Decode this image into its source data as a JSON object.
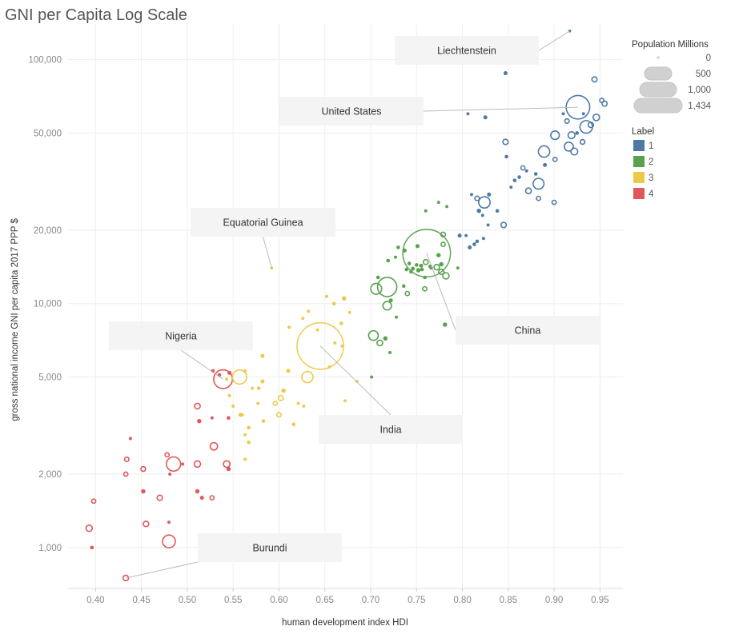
{
  "title": "GNI per Capita Log Scale",
  "chart_data": {
    "type": "scatter",
    "title": "GNI per Capita Log Scale",
    "xlabel": "human development index HDI",
    "ylabel": "gross national income GNI per capita 2017 PPP $",
    "x_scale": "linear",
    "y_scale": "log",
    "xlim": [
      0.37,
      0.975
    ],
    "ylim": [
      680,
      140000
    ],
    "x_ticks": [
      0.4,
      0.45,
      0.5,
      0.55,
      0.6,
      0.65,
      0.7,
      0.75,
      0.8,
      0.85,
      0.9,
      0.95
    ],
    "x_tick_labels": [
      "0.40",
      "0.45",
      "0.50",
      "0.55",
      "0.60",
      "0.65",
      "0.70",
      "0.75",
      "0.80",
      "0.85",
      "0.90",
      "0.95"
    ],
    "y_ticks": [
      1000,
      2000,
      5000,
      10000,
      20000,
      50000,
      100000
    ],
    "y_tick_labels": [
      "1,000",
      "2,000",
      "5,000",
      "10,000",
      "20,000",
      "50,000",
      "100,000"
    ],
    "grid": true,
    "legend": {
      "size_title": "Population Millions",
      "size_entries": [
        {
          "label": "0",
          "value": 0
        },
        {
          "label": "500",
          "value": 500
        },
        {
          "label": "1,000",
          "value": 1000
        },
        {
          "label": "1,434",
          "value": 1434
        }
      ],
      "color_title": "Label",
      "color_entries": [
        {
          "label": "1",
          "color": "#4e79a7"
        },
        {
          "label": "2",
          "color": "#59a14f"
        },
        {
          "label": "3",
          "color": "#edc948"
        },
        {
          "label": "4",
          "color": "#e15759"
        }
      ],
      "position": "right"
    },
    "annotations": [
      {
        "text": "Liechtenstein",
        "x": 0.917,
        "y": 131000
      },
      {
        "text": "United States",
        "x": 0.926,
        "y": 63800
      },
      {
        "text": "Equatorial Guinea",
        "x": 0.592,
        "y": 14000
      },
      {
        "text": "China",
        "x": 0.761,
        "y": 16100
      },
      {
        "text": "Nigeria",
        "x": 0.539,
        "y": 4900
      },
      {
        "text": "India",
        "x": 0.645,
        "y": 6700
      },
      {
        "text": "Burundi",
        "x": 0.433,
        "y": 750
      }
    ],
    "series": [
      {
        "name": "1",
        "color": "#4e79a7",
        "points": [
          {
            "x": 0.917,
            "y": 131000,
            "pop": 0.04
          },
          {
            "x": 0.926,
            "y": 63800,
            "pop": 329
          },
          {
            "x": 0.847,
            "y": 88000,
            "pop": 3
          },
          {
            "x": 0.952,
            "y": 68000,
            "pop": 5
          },
          {
            "x": 0.955,
            "y": 66000,
            "pop": 9
          },
          {
            "x": 0.944,
            "y": 83000,
            "pop": 9
          },
          {
            "x": 0.946,
            "y": 58000,
            "pop": 17
          },
          {
            "x": 0.94,
            "y": 54000,
            "pop": 10
          },
          {
            "x": 0.935,
            "y": 53000,
            "pop": 83
          },
          {
            "x": 0.931,
            "y": 46000,
            "pop": 7
          },
          {
            "x": 0.916,
            "y": 44000,
            "pop": 38
          },
          {
            "x": 0.919,
            "y": 49000,
            "pop": 20
          },
          {
            "x": 0.901,
            "y": 49000,
            "pop": 34
          },
          {
            "x": 0.922,
            "y": 42000,
            "pop": 20
          },
          {
            "x": 0.901,
            "y": 39000,
            "pop": 5
          },
          {
            "x": 0.889,
            "y": 42000,
            "pop": 66
          },
          {
            "x": 0.89,
            "y": 37000,
            "pop": 3
          },
          {
            "x": 0.91,
            "y": 60000,
            "pop": 1
          },
          {
            "x": 0.914,
            "y": 56000,
            "pop": 6
          },
          {
            "x": 0.932,
            "y": 60000,
            "pop": 1
          },
          {
            "x": 0.925,
            "y": 50000,
            "pop": 2
          },
          {
            "x": 0.9,
            "y": 26000,
            "pop": 5
          },
          {
            "x": 0.883,
            "y": 31000,
            "pop": 60
          },
          {
            "x": 0.88,
            "y": 34000,
            "pop": 2
          },
          {
            "x": 0.87,
            "y": 35000,
            "pop": 1
          },
          {
            "x": 0.866,
            "y": 36000,
            "pop": 5
          },
          {
            "x": 0.862,
            "y": 33000,
            "pop": 2
          },
          {
            "x": 0.857,
            "y": 32000,
            "pop": 2
          },
          {
            "x": 0.853,
            "y": 30000,
            "pop": 1
          },
          {
            "x": 0.847,
            "y": 46000,
            "pop": 10
          },
          {
            "x": 0.848,
            "y": 40000,
            "pop": 2
          },
          {
            "x": 0.872,
            "y": 29000,
            "pop": 12
          },
          {
            "x": 0.883,
            "y": 27000,
            "pop": 5
          },
          {
            "x": 0.824,
            "y": 26000,
            "pop": 66
          },
          {
            "x": 0.816,
            "y": 27000,
            "pop": 6
          },
          {
            "x": 0.829,
            "y": 28000,
            "pop": 3
          },
          {
            "x": 0.818,
            "y": 24000,
            "pop": 4
          },
          {
            "x": 0.838,
            "y": 24000,
            "pop": 2
          },
          {
            "x": 0.825,
            "y": 58000,
            "pop": 3
          },
          {
            "x": 0.806,
            "y": 60000,
            "pop": 1
          },
          {
            "x": 0.81,
            "y": 28000,
            "pop": 1
          },
          {
            "x": 0.822,
            "y": 23000,
            "pop": 1
          },
          {
            "x": 0.828,
            "y": 21000,
            "pop": 1
          },
          {
            "x": 0.845,
            "y": 21000,
            "pop": 10
          },
          {
            "x": 0.804,
            "y": 19000,
            "pop": 1
          },
          {
            "x": 0.816,
            "y": 18000,
            "pop": 2
          },
          {
            "x": 0.823,
            "y": 18500,
            "pop": 1
          },
          {
            "x": 0.813,
            "y": 17500,
            "pop": 2
          },
          {
            "x": 0.808,
            "y": 17000,
            "pop": 3
          },
          {
            "x": 0.797,
            "y": 19000,
            "pop": 3
          }
        ]
      },
      {
        "name": "2",
        "color": "#59a14f",
        "points": [
          {
            "x": 0.761,
            "y": 16100,
            "pop": 1434
          },
          {
            "x": 0.779,
            "y": 19200,
            "pop": 7
          },
          {
            "x": 0.779,
            "y": 17500,
            "pop": 5
          },
          {
            "x": 0.777,
            "y": 14500,
            "pop": 4
          },
          {
            "x": 0.782,
            "y": 13000,
            "pop": 16
          },
          {
            "x": 0.777,
            "y": 13500,
            "pop": 10
          },
          {
            "x": 0.774,
            "y": 15800,
            "pop": 4
          },
          {
            "x": 0.772,
            "y": 14100,
            "pop": 11
          },
          {
            "x": 0.765,
            "y": 14200,
            "pop": 3
          },
          {
            "x": 0.76,
            "y": 14800,
            "pop": 8
          },
          {
            "x": 0.766,
            "y": 14000,
            "pop": 2
          },
          {
            "x": 0.755,
            "y": 14300,
            "pop": 3
          },
          {
            "x": 0.756,
            "y": 13800,
            "pop": 2
          },
          {
            "x": 0.75,
            "y": 14400,
            "pop": 2
          },
          {
            "x": 0.752,
            "y": 13700,
            "pop": 4
          },
          {
            "x": 0.746,
            "y": 13900,
            "pop": 3
          },
          {
            "x": 0.742,
            "y": 14600,
            "pop": 2
          },
          {
            "x": 0.739,
            "y": 13800,
            "pop": 2
          },
          {
            "x": 0.737,
            "y": 16500,
            "pop": 3
          },
          {
            "x": 0.751,
            "y": 17200,
            "pop": 3
          },
          {
            "x": 0.744,
            "y": 13500,
            "pop": 2
          },
          {
            "x": 0.759,
            "y": 12800,
            "pop": 2
          },
          {
            "x": 0.795,
            "y": 14000,
            "pop": 1
          },
          {
            "x": 0.781,
            "y": 8200,
            "pop": 4
          },
          {
            "x": 0.759,
            "y": 11500,
            "pop": 5
          },
          {
            "x": 0.74,
            "y": 11000,
            "pop": 5
          },
          {
            "x": 0.736,
            "y": 11800,
            "pop": 2
          },
          {
            "x": 0.708,
            "y": 12800,
            "pop": 2
          },
          {
            "x": 0.718,
            "y": 11700,
            "pop": 212
          },
          {
            "x": 0.706,
            "y": 11500,
            "pop": 60
          },
          {
            "x": 0.722,
            "y": 10300,
            "pop": 3
          },
          {
            "x": 0.718,
            "y": 9800,
            "pop": 34
          },
          {
            "x": 0.728,
            "y": 8800,
            "pop": 1
          },
          {
            "x": 0.703,
            "y": 7400,
            "pop": 45
          },
          {
            "x": 0.716,
            "y": 7200,
            "pop": 4
          },
          {
            "x": 0.71,
            "y": 6900,
            "pop": 12
          },
          {
            "x": 0.701,
            "y": 5000,
            "pop": 1
          },
          {
            "x": 0.721,
            "y": 6300,
            "pop": 1
          },
          {
            "x": 0.73,
            "y": 17000,
            "pop": 2
          },
          {
            "x": 0.719,
            "y": 15000,
            "pop": 2
          },
          {
            "x": 0.727,
            "y": 15500,
            "pop": 1
          },
          {
            "x": 0.76,
            "y": 24000,
            "pop": 1
          },
          {
            "x": 0.774,
            "y": 26000,
            "pop": 1
          },
          {
            "x": 0.783,
            "y": 25000,
            "pop": 1
          }
        ]
      },
      {
        "name": "3",
        "color": "#edc948",
        "points": [
          {
            "x": 0.645,
            "y": 6700,
            "pop": 1366
          },
          {
            "x": 0.557,
            "y": 5000,
            "pop": 109
          },
          {
            "x": 0.631,
            "y": 5000,
            "pop": 63
          },
          {
            "x": 0.616,
            "y": 3200,
            "pop": 2
          },
          {
            "x": 0.61,
            "y": 5300,
            "pop": 3
          },
          {
            "x": 0.605,
            "y": 4400,
            "pop": 4
          },
          {
            "x": 0.602,
            "y": 4100,
            "pop": 8
          },
          {
            "x": 0.6,
            "y": 3500,
            "pop": 6
          },
          {
            "x": 0.582,
            "y": 4800,
            "pop": 3
          },
          {
            "x": 0.578,
            "y": 4500,
            "pop": 2
          },
          {
            "x": 0.577,
            "y": 3900,
            "pop": 1
          },
          {
            "x": 0.571,
            "y": 4500,
            "pop": 1
          },
          {
            "x": 0.596,
            "y": 3900,
            "pop": 5
          },
          {
            "x": 0.583,
            "y": 3300,
            "pop": 2
          },
          {
            "x": 0.567,
            "y": 3100,
            "pop": 2
          },
          {
            "x": 0.563,
            "y": 2900,
            "pop": 1
          },
          {
            "x": 0.567,
            "y": 2700,
            "pop": 2
          },
          {
            "x": 0.563,
            "y": 2300,
            "pop": 1
          },
          {
            "x": 0.558,
            "y": 3500,
            "pop": 3
          },
          {
            "x": 0.56,
            "y": 3500,
            "pop": 1
          },
          {
            "x": 0.546,
            "y": 4200,
            "pop": 1
          },
          {
            "x": 0.55,
            "y": 3800,
            "pop": 1
          },
          {
            "x": 0.543,
            "y": 4900,
            "pop": 1
          },
          {
            "x": 0.563,
            "y": 5300,
            "pop": 1
          },
          {
            "x": 0.582,
            "y": 6100,
            "pop": 3
          },
          {
            "x": 0.668,
            "y": 8300,
            "pop": 2
          },
          {
            "x": 0.669,
            "y": 6700,
            "pop": 1
          },
          {
            "x": 0.661,
            "y": 6900,
            "pop": 1
          },
          {
            "x": 0.655,
            "y": 5500,
            "pop": 1
          },
          {
            "x": 0.672,
            "y": 4000,
            "pop": 1
          },
          {
            "x": 0.685,
            "y": 4800,
            "pop": 1
          },
          {
            "x": 0.671,
            "y": 10500,
            "pop": 4
          },
          {
            "x": 0.66,
            "y": 10000,
            "pop": 2
          },
          {
            "x": 0.642,
            "y": 7800,
            "pop": 1
          },
          {
            "x": 0.632,
            "y": 9300,
            "pop": 1
          },
          {
            "x": 0.626,
            "y": 8700,
            "pop": 1
          },
          {
            "x": 0.611,
            "y": 8000,
            "pop": 1
          },
          {
            "x": 0.677,
            "y": 9200,
            "pop": 1
          },
          {
            "x": 0.652,
            "y": 10700,
            "pop": 1
          },
          {
            "x": 0.621,
            "y": 3900,
            "pop": 1
          },
          {
            "x": 0.627,
            "y": 3800,
            "pop": 1
          },
          {
            "x": 0.592,
            "y": 14000,
            "pop": 1
          }
        ]
      },
      {
        "name": "4",
        "color": "#e15759",
        "points": [
          {
            "x": 0.539,
            "y": 4900,
            "pop": 201
          },
          {
            "x": 0.528,
            "y": 5300,
            "pop": 2
          },
          {
            "x": 0.535,
            "y": 5100,
            "pop": 2
          },
          {
            "x": 0.546,
            "y": 5200,
            "pop": 3
          },
          {
            "x": 0.511,
            "y": 3800,
            "pop": 12
          },
          {
            "x": 0.513,
            "y": 3300,
            "pop": 4
          },
          {
            "x": 0.527,
            "y": 3400,
            "pop": 1
          },
          {
            "x": 0.545,
            "y": 3400,
            "pop": 2
          },
          {
            "x": 0.529,
            "y": 2600,
            "pop": 24
          },
          {
            "x": 0.511,
            "y": 2200,
            "pop": 16
          },
          {
            "x": 0.543,
            "y": 2200,
            "pop": 18
          },
          {
            "x": 0.545,
            "y": 2100,
            "pop": 4
          },
          {
            "x": 0.485,
            "y": 2200,
            "pop": 110
          },
          {
            "x": 0.478,
            "y": 2400,
            "pop": 5
          },
          {
            "x": 0.495,
            "y": 2200,
            "pop": 1
          },
          {
            "x": 0.481,
            "y": 2000,
            "pop": 1
          },
          {
            "x": 0.452,
            "y": 2100,
            "pop": 7
          },
          {
            "x": 0.434,
            "y": 2300,
            "pop": 6
          },
          {
            "x": 0.433,
            "y": 2000,
            "pop": 5
          },
          {
            "x": 0.438,
            "y": 2800,
            "pop": 1
          },
          {
            "x": 0.452,
            "y": 1700,
            "pop": 4
          },
          {
            "x": 0.47,
            "y": 1600,
            "pop": 10
          },
          {
            "x": 0.398,
            "y": 1550,
            "pop": 5
          },
          {
            "x": 0.511,
            "y": 1700,
            "pop": 4
          },
          {
            "x": 0.516,
            "y": 1600,
            "pop": 3
          },
          {
            "x": 0.527,
            "y": 1600,
            "pop": 5
          },
          {
            "x": 0.455,
            "y": 1250,
            "pop": 11
          },
          {
            "x": 0.393,
            "y": 1200,
            "pop": 16
          },
          {
            "x": 0.48,
            "y": 1270,
            "pop": 1
          },
          {
            "x": 0.48,
            "y": 1060,
            "pop": 87
          },
          {
            "x": 0.396,
            "y": 1000,
            "pop": 2
          },
          {
            "x": 0.433,
            "y": 750,
            "pop": 11
          }
        ]
      }
    ]
  }
}
